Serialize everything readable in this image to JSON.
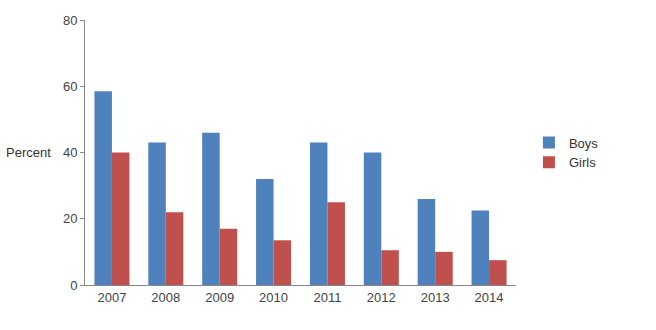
{
  "chart_data": {
    "type": "bar",
    "y_label": "Percent",
    "categories": [
      "2007",
      "2008",
      "2009",
      "2010",
      "2011",
      "2012",
      "2013",
      "2014"
    ],
    "series": [
      {
        "name": "Boys",
        "color": "#4f81bd",
        "values": [
          58.5,
          43,
          46,
          32,
          43,
          40,
          26,
          22.5
        ]
      },
      {
        "name": "Girls",
        "color": "#c0504d",
        "values": [
          40,
          22,
          17,
          13.5,
          25,
          10.5,
          10,
          7.5
        ]
      }
    ],
    "ylim": [
      0,
      80
    ],
    "yticks": [
      0,
      20,
      40,
      60,
      80
    ],
    "grid": false,
    "legend": "right"
  }
}
